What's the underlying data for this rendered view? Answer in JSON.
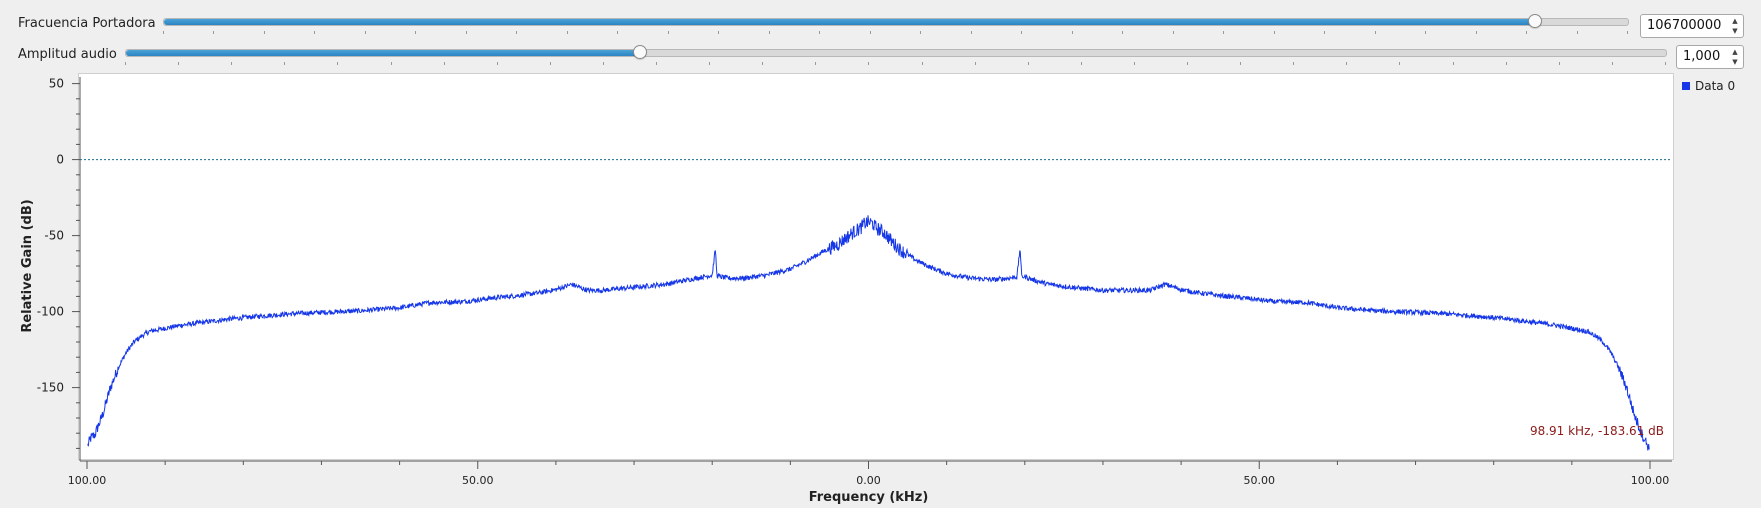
{
  "controls": {
    "carrier": {
      "label": "Fracuencia Portadora",
      "value": "106700000",
      "position": 0.9355
    },
    "audio": {
      "label": "Amplitud audio",
      "value": "1,000",
      "position": 0.3336
    }
  },
  "colors": {
    "trace": "#1637e8",
    "reference_line": "#1a6e8a",
    "marker_text": "#8b1a1a",
    "slider_fill": "#2b85c2"
  },
  "chart_data": {
    "type": "line",
    "title": "",
    "xlabel": "Frequency (kHz)",
    "ylabel": "Relative Gain (dB)",
    "xlim": [
      -100,
      100
    ],
    "ylim": [
      -195,
      55
    ],
    "y_ticks": [
      "50",
      "0",
      "-50",
      "-100",
      "-150"
    ],
    "y_tick_values": [
      50,
      0,
      -50,
      -100,
      -150
    ],
    "x_ticks": [
      "100.00",
      "50.00",
      "0.00",
      "50.00",
      "100.00"
    ],
    "x_tick_values": [
      -100,
      -50,
      0,
      50,
      100
    ],
    "reference_line_y": 0,
    "grid": false,
    "legend": {
      "position": "top-right",
      "entries": [
        "Data 0"
      ]
    },
    "marker_readout": "98.91 kHz, -183.61 dB",
    "series": [
      {
        "name": "Data 0",
        "x": [
          -99.9,
          -99.5,
          -99,
          -98,
          -97,
          -96,
          -95,
          -94,
          -93,
          -92,
          -90,
          -88,
          -85,
          -82,
          -78,
          -74,
          -70,
          -65,
          -60,
          -56,
          -52,
          -48,
          -45,
          -42,
          -40,
          -38.5,
          -38,
          -37.5,
          -36,
          -34,
          -30,
          -26,
          -23,
          -21,
          -20,
          -19.6,
          -19.4,
          -19,
          -18,
          -16,
          -13,
          -10,
          -8,
          -6,
          -4,
          -3,
          -2,
          -1,
          -0.5,
          0,
          0.5,
          1,
          2,
          3,
          4,
          6,
          8,
          10,
          13,
          16,
          18,
          19,
          19.4,
          19.6,
          20,
          21,
          23,
          26,
          30,
          34,
          36,
          37.5,
          38,
          38.5,
          40,
          42,
          45,
          48,
          52,
          56,
          60,
          65,
          70,
          74,
          78,
          82,
          85,
          88,
          90,
          92,
          93,
          94,
          95,
          96,
          97,
          98,
          99,
          99.5,
          99.9
        ],
        "y": [
          -188,
          -183,
          -181,
          -168,
          -150,
          -137,
          -127,
          -120,
          -116,
          -113,
          -111,
          -109,
          -107,
          -105,
          -103,
          -101.5,
          -100.5,
          -99.5,
          -97.5,
          -94,
          -93.5,
          -91,
          -89.5,
          -87.5,
          -85.5,
          -83,
          -82,
          -83,
          -86,
          -86,
          -84,
          -82,
          -79,
          -77,
          -76,
          -59,
          -76,
          -77,
          -78,
          -78,
          -76,
          -72,
          -67,
          -61,
          -56,
          -52,
          -48,
          -45,
          -42,
          -41,
          -42,
          -45,
          -48,
          -54,
          -59,
          -66,
          -71,
          -75,
          -78,
          -79,
          -78,
          -77,
          -58,
          -77,
          -77,
          -79,
          -82,
          -84,
          -86,
          -86,
          -86,
          -83,
          -82,
          -83,
          -85.5,
          -87.5,
          -89.5,
          -91,
          -93.5,
          -94,
          -97.5,
          -99.5,
          -100.5,
          -101.5,
          -103,
          -105,
          -107,
          -109,
          -111,
          -113,
          -116,
          -120,
          -127,
          -137,
          -150,
          -168,
          -181,
          -186,
          -190
        ]
      }
    ]
  }
}
